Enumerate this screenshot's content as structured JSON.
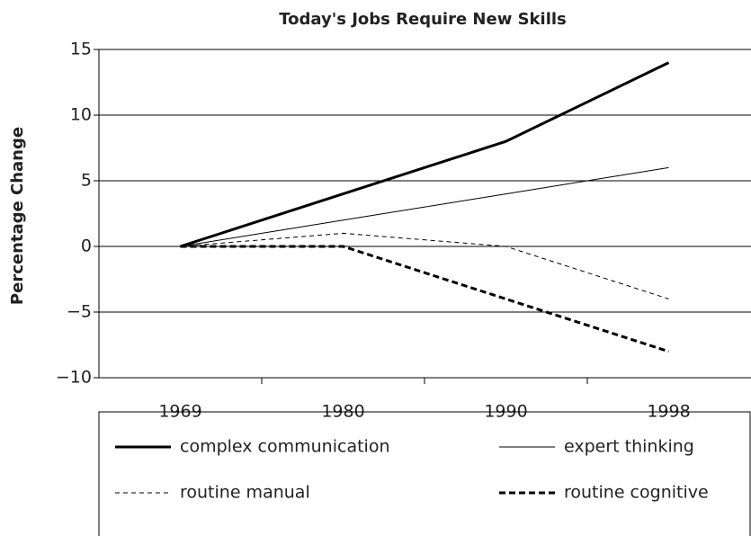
{
  "chart_data": {
    "type": "line",
    "title": "Today's Jobs Require New Skills",
    "y_label": "Percentage Change",
    "categories": [
      "1969",
      "1980",
      "1990",
      "1998"
    ],
    "series": [
      {
        "name": "complex communication",
        "color": "#000000",
        "style": "solid",
        "weight": "thick",
        "values": [
          0,
          4,
          8,
          14
        ]
      },
      {
        "name": "expert thinking",
        "color": "#000000",
        "style": "solid",
        "weight": "thin",
        "values": [
          0,
          2,
          4,
          6
        ]
      },
      {
        "name": "routine manual",
        "color": "#000000",
        "style": "dashed",
        "weight": "thin",
        "values": [
          0,
          1,
          0,
          -4
        ]
      },
      {
        "name": "routine cognitive",
        "color": "#000000",
        "style": "dashed",
        "weight": "thick",
        "values": [
          0,
          0,
          -4,
          -8
        ]
      }
    ],
    "ylim": [
      -10,
      15
    ],
    "yticks": [
      {
        "value": -10,
        "label": "−10"
      },
      {
        "value": -5,
        "label": "−5"
      },
      0,
      5,
      10,
      15
    ],
    "grid": true,
    "legend": "bottom"
  }
}
